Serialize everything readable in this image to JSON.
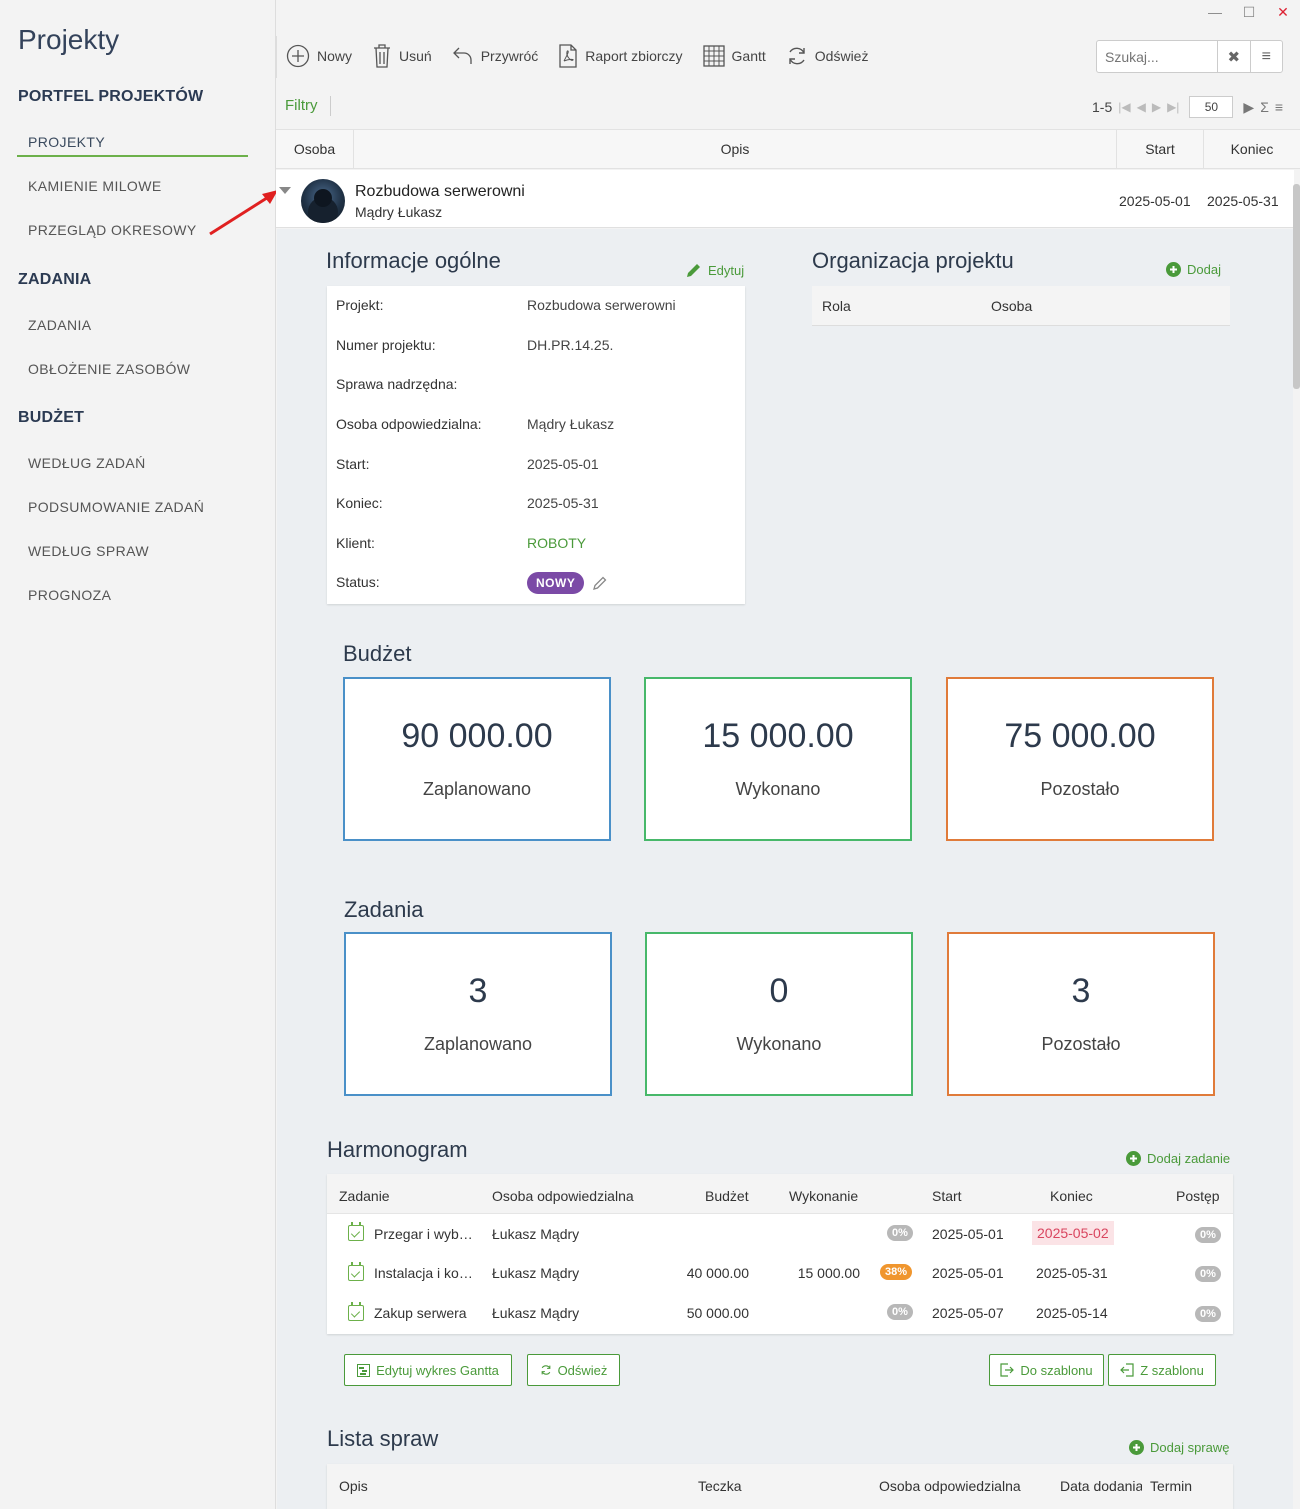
{
  "window": {
    "minimize": "—",
    "maximize": "☐",
    "close": "✕"
  },
  "sidebar": {
    "title": "Projekty",
    "sections": [
      {
        "label": "PORTFEL PROJEKTÓW",
        "items": [
          "PROJEKTY",
          "KAMIENIE MILOWE",
          "PRZEGLĄD OKRESOWY"
        ]
      },
      {
        "label": "ZADANIA",
        "items": [
          "ZADANIA",
          "OBŁOŻENIE ZASOBÓW"
        ]
      },
      {
        "label": "BUDŻET",
        "items": [
          "WEDŁUG ZADAŃ",
          "PODSUMOWANIE ZADAŃ",
          "WEDŁUG SPRAW",
          "PROGNOZA"
        ]
      }
    ]
  },
  "toolbar": {
    "new": "Nowy",
    "delete": "Usuń",
    "restore": "Przywróć",
    "report": "Raport zbiorczy",
    "gantt": "Gantt",
    "refresh": "Odśwież",
    "search_placeholder": "Szukaj..."
  },
  "filters": "Filtry",
  "pager": {
    "range": "1-5",
    "page_size": "50"
  },
  "grid": {
    "columns": [
      "Osoba",
      "Opis",
      "Start",
      "Koniec"
    ],
    "row": {
      "title": "Rozbudowa serwerowni",
      "person": "Mądry Łukasz",
      "start": "2025-05-01",
      "end": "2025-05-31"
    }
  },
  "general": {
    "title": "Informacje ogólne",
    "edit": "Edytuj",
    "rows": [
      {
        "k": "Projekt:",
        "v": "Rozbudowa serwerowni"
      },
      {
        "k": "Numer projektu:",
        "v": "DH.PR.14.25."
      },
      {
        "k": "Sprawa nadrzędna:",
        "v": ""
      },
      {
        "k": "Osoba odpowiedzialna:",
        "v": "Mądry Łukasz"
      },
      {
        "k": "Start:",
        "v": "2025-05-01"
      },
      {
        "k": "Koniec:",
        "v": "2025-05-31"
      },
      {
        "k": "Klient:",
        "v": "ROBOTY"
      },
      {
        "k": "Status:",
        "v": "NOWY"
      }
    ]
  },
  "org": {
    "title": "Organizacja projektu",
    "add": "Dodaj",
    "col_role": "Rola",
    "col_person": "Osoba"
  },
  "budget": {
    "title": "Budżet",
    "cards": [
      {
        "num": "90 000.00",
        "lbl": "Zaplanowano"
      },
      {
        "num": "15 000.00",
        "lbl": "Wykonano"
      },
      {
        "num": "75 000.00",
        "lbl": "Pozostało"
      }
    ]
  },
  "tasks_summary": {
    "title": "Zadania",
    "cards": [
      {
        "num": "3",
        "lbl": "Zaplanowano"
      },
      {
        "num": "0",
        "lbl": "Wykonano"
      },
      {
        "num": "3",
        "lbl": "Pozostało"
      }
    ]
  },
  "schedule": {
    "title": "Harmonogram",
    "add": "Dodaj zadanie",
    "columns": [
      "Zadanie",
      "Osoba odpowiedzialna",
      "Budżet",
      "Wykonanie",
      "Start",
      "Koniec",
      "Postęp"
    ],
    "rows": [
      {
        "task": "Przegar i wyb…",
        "person": "Łukasz Mądry",
        "budget": "",
        "done": "",
        "pct": "0%",
        "start": "2025-05-01",
        "end": "2025-05-02",
        "progress": "0%"
      },
      {
        "task": "Instalacja i ko…",
        "person": "Łukasz Mądry",
        "budget": "40 000.00",
        "done": "15 000.00",
        "pct": "38%",
        "start": "2025-05-01",
        "end": "2025-05-31",
        "progress": "0%"
      },
      {
        "task": "Zakup serwera",
        "person": "Łukasz Mądry",
        "budget": "50 000.00",
        "done": "",
        "pct": "0%",
        "start": "2025-05-07",
        "end": "2025-05-14",
        "progress": "0%"
      }
    ],
    "buttons": {
      "edit_gantt": "Edytuj wykres Gantta",
      "refresh": "Odśwież",
      "to_template": "Do szablonu",
      "from_template": "Z szablonu"
    }
  },
  "cases": {
    "title": "Lista spraw",
    "add": "Dodaj sprawę",
    "columns": [
      "Opis",
      "Teczka",
      "Osoba odpowiedzialna",
      "Data dodania",
      "Termin"
    ]
  },
  "colors": {
    "accent": "#4a9a3a",
    "status": "#7b4aa6",
    "blue": "#4a90c8",
    "green": "#47b86a",
    "orange": "#e07b3a"
  }
}
